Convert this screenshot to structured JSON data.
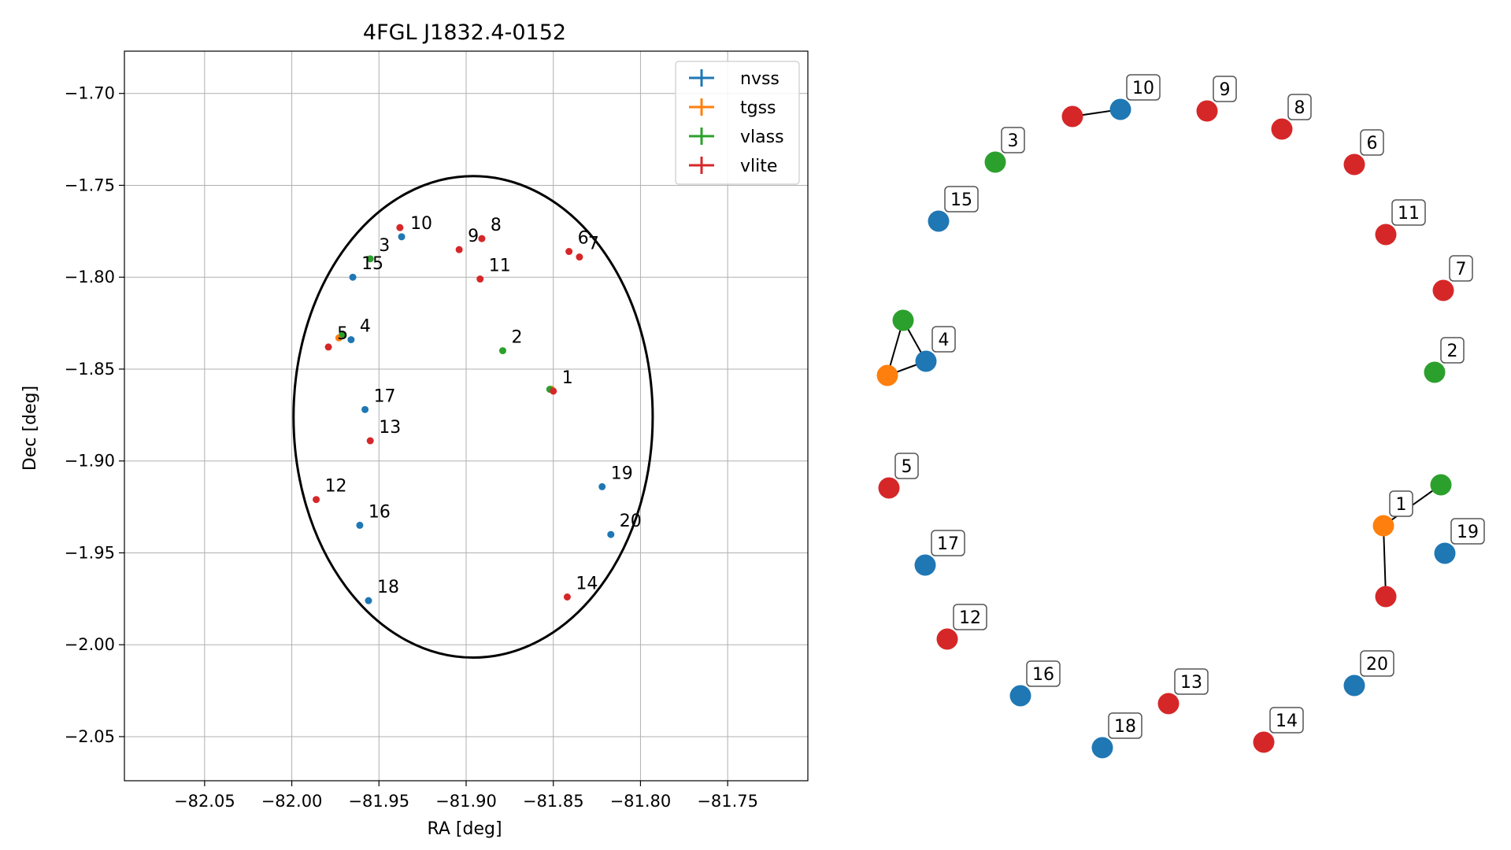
{
  "chart_data": [
    {
      "type": "scatter",
      "title": "4FGL J1832.4-0152",
      "xlabel": "RA [deg]",
      "ylabel": "Dec [deg]",
      "xlim": [
        -82.096,
        -81.704
      ],
      "ylim": [
        -2.074,
        -1.677
      ],
      "xticks": [
        -82.05,
        -82.0,
        -81.95,
        -81.9,
        -81.85,
        -81.8,
        -81.75
      ],
      "xtick_labels": [
        "−82.05",
        "−82.00",
        "−81.95",
        "−81.90",
        "−81.85",
        "−81.80",
        "−81.75"
      ],
      "yticks": [
        -1.7,
        -1.75,
        -1.8,
        -1.85,
        -1.9,
        -1.95,
        -2.0,
        -2.05
      ],
      "ytick_labels": [
        "−1.70",
        "−1.75",
        "−1.80",
        "−1.85",
        "−1.90",
        "−1.95",
        "−2.00",
        "−2.05"
      ],
      "grid": true,
      "legend_position": "top-right",
      "series_colors": {
        "nvss": "#1f77b4",
        "tgss": "#ff7f0e",
        "vlass": "#2ca02c",
        "vlite": "#d62728"
      },
      "series": [
        {
          "name": "nvss",
          "color": "#1f77b4",
          "points": [
            {
              "label": "10",
              "ra": -81.937,
              "dec": -1.778
            },
            {
              "label": "15",
              "ra": -81.965,
              "dec": -1.8
            },
            {
              "label": "4",
              "ra": -81.966,
              "dec": -1.834
            },
            {
              "label": "17",
              "ra": -81.958,
              "dec": -1.872
            },
            {
              "label": "19",
              "ra": -81.822,
              "dec": -1.914
            },
            {
              "label": "16",
              "ra": -81.961,
              "dec": -1.935
            },
            {
              "label": "20",
              "ra": -81.817,
              "dec": -1.94
            },
            {
              "label": "18",
              "ra": -81.956,
              "dec": -1.976
            }
          ]
        },
        {
          "name": "tgss",
          "color": "#ff7f0e",
          "points": [
            {
              "label": "",
              "ra": -81.973,
              "dec": -1.833
            },
            {
              "label": "",
              "ra": -81.851,
              "dec": -1.861
            }
          ]
        },
        {
          "name": "vlass",
          "color": "#2ca02c",
          "points": [
            {
              "label": "3",
              "ra": -81.955,
              "dec": -1.79
            },
            {
              "label": "",
              "ra": -81.971,
              "dec": -1.831
            },
            {
              "label": "2",
              "ra": -81.879,
              "dec": -1.84
            },
            {
              "label": "",
              "ra": -81.852,
              "dec": -1.861
            }
          ]
        },
        {
          "name": "vlite",
          "color": "#d62728",
          "points": [
            {
              "label": "",
              "ra": -81.938,
              "dec": -1.773
            },
            {
              "label": "8",
              "ra": -81.891,
              "dec": -1.779
            },
            {
              "label": "9",
              "ra": -81.904,
              "dec": -1.785
            },
            {
              "label": "6",
              "ra": -81.841,
              "dec": -1.786
            },
            {
              "label": "7",
              "ra": -81.835,
              "dec": -1.789
            },
            {
              "label": "11",
              "ra": -81.892,
              "dec": -1.801
            },
            {
              "label": "5",
              "ra": -81.979,
              "dec": -1.838
            },
            {
              "label": "1",
              "ra": -81.85,
              "dec": -1.862
            },
            {
              "label": "13",
              "ra": -81.955,
              "dec": -1.889
            },
            {
              "label": "12",
              "ra": -81.986,
              "dec": -1.921
            },
            {
              "label": "14",
              "ra": -81.842,
              "dec": -1.974
            }
          ]
        }
      ],
      "ellipse": {
        "center_ra": -81.896,
        "center_dec": -1.876,
        "semi_ra": 0.103,
        "semi_dec": 0.131
      }
    },
    {
      "type": "network",
      "nodes": [
        {
          "id": "10",
          "color": "#1f77b4",
          "label": "10"
        },
        {
          "id": "10b",
          "color": "#d62728",
          "label": ""
        },
        {
          "id": "9",
          "color": "#d62728",
          "label": "9"
        },
        {
          "id": "8",
          "color": "#d62728",
          "label": "8"
        },
        {
          "id": "6",
          "color": "#d62728",
          "label": "6"
        },
        {
          "id": "3",
          "color": "#2ca02c",
          "label": "3"
        },
        {
          "id": "15",
          "color": "#1f77b4",
          "label": "15"
        },
        {
          "id": "11",
          "color": "#d62728",
          "label": "11"
        },
        {
          "id": "7",
          "color": "#d62728",
          "label": "7"
        },
        {
          "id": "4g",
          "color": "#2ca02c",
          "label": ""
        },
        {
          "id": "4",
          "color": "#1f77b4",
          "label": "4"
        },
        {
          "id": "4o",
          "color": "#ff7f0e",
          "label": ""
        },
        {
          "id": "2",
          "color": "#2ca02c",
          "label": "2"
        },
        {
          "id": "5",
          "color": "#d62728",
          "label": "5"
        },
        {
          "id": "1g",
          "color": "#2ca02c",
          "label": ""
        },
        {
          "id": "1",
          "color": "#ff7f0e",
          "label": "1"
        },
        {
          "id": "1r",
          "color": "#d62728",
          "label": ""
        },
        {
          "id": "19",
          "color": "#1f77b4",
          "label": "19"
        },
        {
          "id": "17",
          "color": "#1f77b4",
          "label": "17"
        },
        {
          "id": "12",
          "color": "#d62728",
          "label": "12"
        },
        {
          "id": "16",
          "color": "#1f77b4",
          "label": "16"
        },
        {
          "id": "13",
          "color": "#d62728",
          "label": "13"
        },
        {
          "id": "20",
          "color": "#1f77b4",
          "label": "20"
        },
        {
          "id": "18",
          "color": "#1f77b4",
          "label": "18"
        },
        {
          "id": "14",
          "color": "#d62728",
          "label": "14"
        }
      ],
      "edges": [
        [
          "10",
          "10b"
        ],
        [
          "4g",
          "4"
        ],
        [
          "4g",
          "4o"
        ],
        [
          "4o",
          "4"
        ],
        [
          "1g",
          "1"
        ],
        [
          "1",
          "1r"
        ]
      ]
    }
  ]
}
